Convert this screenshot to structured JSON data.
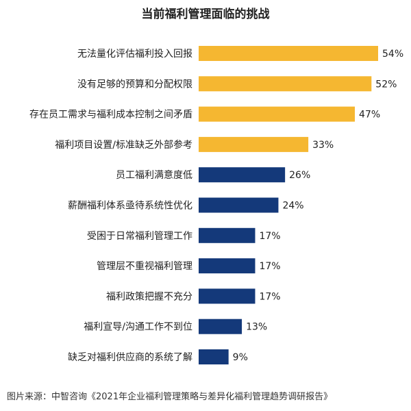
{
  "chart_data": {
    "type": "bar",
    "orientation": "horizontal",
    "title": "当前福利管理面临的挑战",
    "categories": [
      "无法量化评估福利投入回报",
      "没有足够的预算和分配权限",
      "存在员工需求与福利成本控制之间矛盾",
      "福利项目设置/标准缺乏外部参考",
      "员工福利满意度低",
      "薪酬福利体系亟待系统性优化",
      "受困于日常福利管理工作",
      "管理层不重视福利管理",
      "福利政策把握不充分",
      "福利宣导/沟通工作不到位",
      "缺乏对福利供应商的系统了解"
    ],
    "values": [
      54,
      52,
      47,
      33,
      26,
      24,
      17,
      17,
      17,
      13,
      9
    ],
    "value_labels": [
      "54%",
      "52%",
      "47%",
      "33%",
      "26%",
      "24%",
      "17%",
      "17%",
      "17%",
      "13%",
      "9%"
    ],
    "highlight_count": 4,
    "colors": {
      "highlight": "#F5B731",
      "normal": "#14397A"
    },
    "xlim": [
      0,
      54
    ],
    "grid": false
  },
  "source": "图片来源：中智咨询《2021年企业福利管理策略与差异化福利管理趋势调研报告》"
}
